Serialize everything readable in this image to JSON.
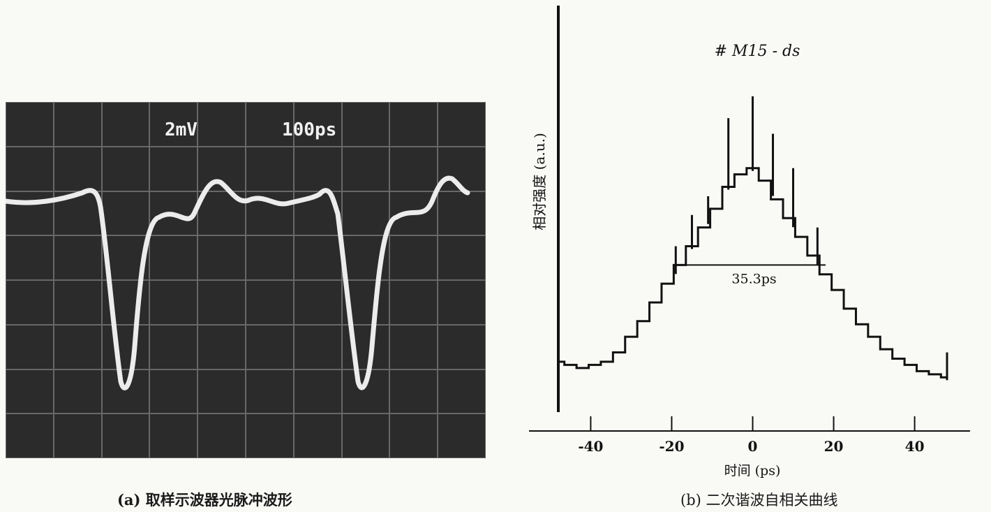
{
  "panel_a": {
    "caption": "(a) 取样示波器光脉冲波形",
    "screen_labels": [
      "2mV",
      "100ps"
    ]
  },
  "panel_b": {
    "caption": "(b) 二次谐波自相关曲线"
  },
  "chart_data": {
    "type": "line",
    "title": "# M15 - ds",
    "xlabel": "时间 (ps)",
    "ylabel": "相对强度 (a.u.)",
    "xlim": [
      -48,
      48
    ],
    "ylim": [
      0,
      1.04
    ],
    "xticks": [
      -40,
      -20,
      0,
      20,
      40
    ],
    "xtick_labels": [
      "-40",
      "-20",
      "0",
      "20",
      "40"
    ],
    "annotation": {
      "text": "35.3ps",
      "x_from": -17.3,
      "x_to": 18,
      "y": 0.46
    },
    "series": [
      {
        "x": [
          -48,
          -45,
          -42,
          -39,
          -36,
          -33,
          -30,
          -27,
          -24,
          -21,
          -18,
          -15,
          -12,
          -9,
          -6,
          -3,
          0,
          3,
          6,
          9,
          12,
          15,
          18,
          21,
          24,
          27,
          30,
          33,
          36,
          39,
          42,
          45,
          48
        ],
        "y": [
          0.15,
          0.14,
          0.13,
          0.14,
          0.15,
          0.18,
          0.23,
          0.28,
          0.34,
          0.4,
          0.46,
          0.52,
          0.58,
          0.64,
          0.71,
          0.75,
          0.77,
          0.73,
          0.67,
          0.61,
          0.55,
          0.49,
          0.43,
          0.38,
          0.32,
          0.27,
          0.23,
          0.19,
          0.16,
          0.14,
          0.12,
          0.11,
          0.1
        ]
      }
    ],
    "spikes": [
      {
        "x": -19,
        "y": 0.52
      },
      {
        "x": -15,
        "y": 0.62
      },
      {
        "x": -11,
        "y": 0.68
      },
      {
        "x": -6,
        "y": 0.93
      },
      {
        "x": 0,
        "y": 1.0
      },
      {
        "x": 5,
        "y": 0.88
      },
      {
        "x": 10,
        "y": 0.77
      },
      {
        "x": 16,
        "y": 0.58
      },
      {
        "x": 48,
        "y": 0.18
      }
    ]
  }
}
